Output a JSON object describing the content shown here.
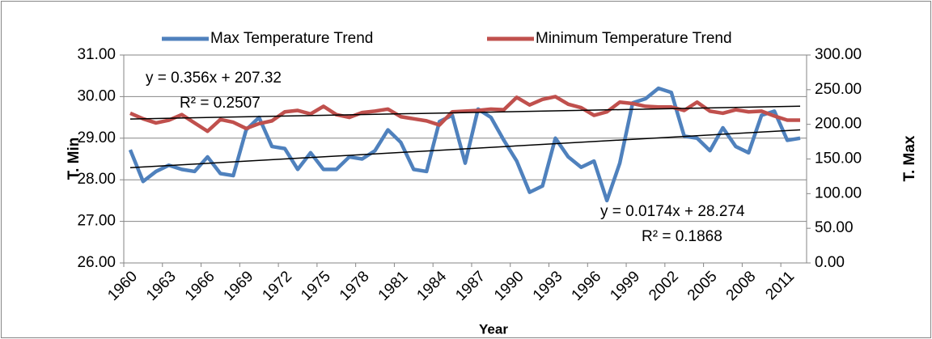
{
  "chart_data": {
    "type": "line",
    "x_label": "Year",
    "y_label": "T. Min",
    "y2_label": "T. Max",
    "categories": [
      "1960",
      null,
      null,
      "1963",
      null,
      null,
      "1966",
      null,
      null,
      "1969",
      null,
      null,
      "1972",
      null,
      null,
      "1975",
      null,
      null,
      "1978",
      null,
      null,
      "1981",
      null,
      null,
      "1984",
      null,
      null,
      "1987",
      null,
      null,
      "1990",
      null,
      null,
      "1993",
      null,
      null,
      "1996",
      null,
      null,
      "1999",
      null,
      null,
      "2002",
      null,
      null,
      "2005",
      null,
      null,
      "2008",
      null,
      null,
      "2011",
      null
    ],
    "series": [
      {
        "name": "Max Temperature Trend",
        "color": "#4f81bd",
        "values": [
          28.72,
          27.96,
          28.2,
          28.35,
          28.25,
          28.2,
          28.55,
          28.15,
          28.1,
          29.2,
          29.5,
          28.8,
          28.75,
          28.25,
          28.65,
          28.25,
          28.25,
          28.55,
          28.5,
          28.7,
          29.2,
          28.9,
          28.25,
          28.2,
          29.4,
          29.55,
          28.4,
          29.7,
          29.5,
          28.95,
          28.45,
          27.7,
          27.85,
          29.0,
          28.55,
          28.3,
          28.45,
          27.5,
          28.4,
          29.85,
          29.95,
          30.2,
          30.1,
          29.05,
          29.0,
          28.7,
          29.25,
          28.8,
          28.65,
          29.55,
          29.65,
          28.95,
          29.0
        ]
      },
      {
        "name": "Minimum Temperature Trend",
        "color": "#c0504d",
        "axis": "y2",
        "values": [
          216,
          208,
          202,
          206,
          214,
          202,
          190,
          207,
          203,
          194,
          201,
          205,
          218,
          220,
          215,
          226,
          214,
          210,
          217,
          219,
          222,
          211,
          208,
          205,
          199,
          218,
          219,
          220,
          222,
          221,
          239,
          228,
          236,
          240,
          229,
          224,
          213,
          218,
          232,
          230,
          226,
          225,
          225,
          220,
          232,
          219,
          216,
          221,
          218,
          219,
          212,
          206,
          206
        ]
      }
    ],
    "trendlines": [
      {
        "axis": "y2",
        "start": 207.68,
        "end": 226.19,
        "equation": "y = 0.356x + 207.32",
        "r2": "R² = 0.2507"
      },
      {
        "start": 28.29,
        "end": 29.2,
        "equation": "y = 0.0174x + 28.274",
        "r2": "R² = 0.1868"
      }
    ],
    "ylim": [
      26,
      31
    ],
    "yticks": [
      {
        "value": 26,
        "label": "26.00"
      },
      {
        "value": 27,
        "label": "27.00"
      },
      {
        "value": 28,
        "label": "28.00"
      },
      {
        "value": 29,
        "label": "29.00"
      },
      {
        "value": 30,
        "label": "30.00"
      },
      {
        "value": 31,
        "label": "31.00"
      }
    ],
    "y2lim": [
      0,
      300
    ],
    "y2ticks": [
      {
        "value": 0,
        "label": "0.00"
      },
      {
        "value": 50,
        "label": "50.00"
      },
      {
        "value": 100,
        "label": "100.00"
      },
      {
        "value": 150,
        "label": "150.00"
      },
      {
        "value": 200,
        "label": "200.00"
      },
      {
        "value": 250,
        "label": "250.00"
      },
      {
        "value": 300,
        "label": "300.00"
      }
    ],
    "grid": true,
    "legend": "top"
  }
}
